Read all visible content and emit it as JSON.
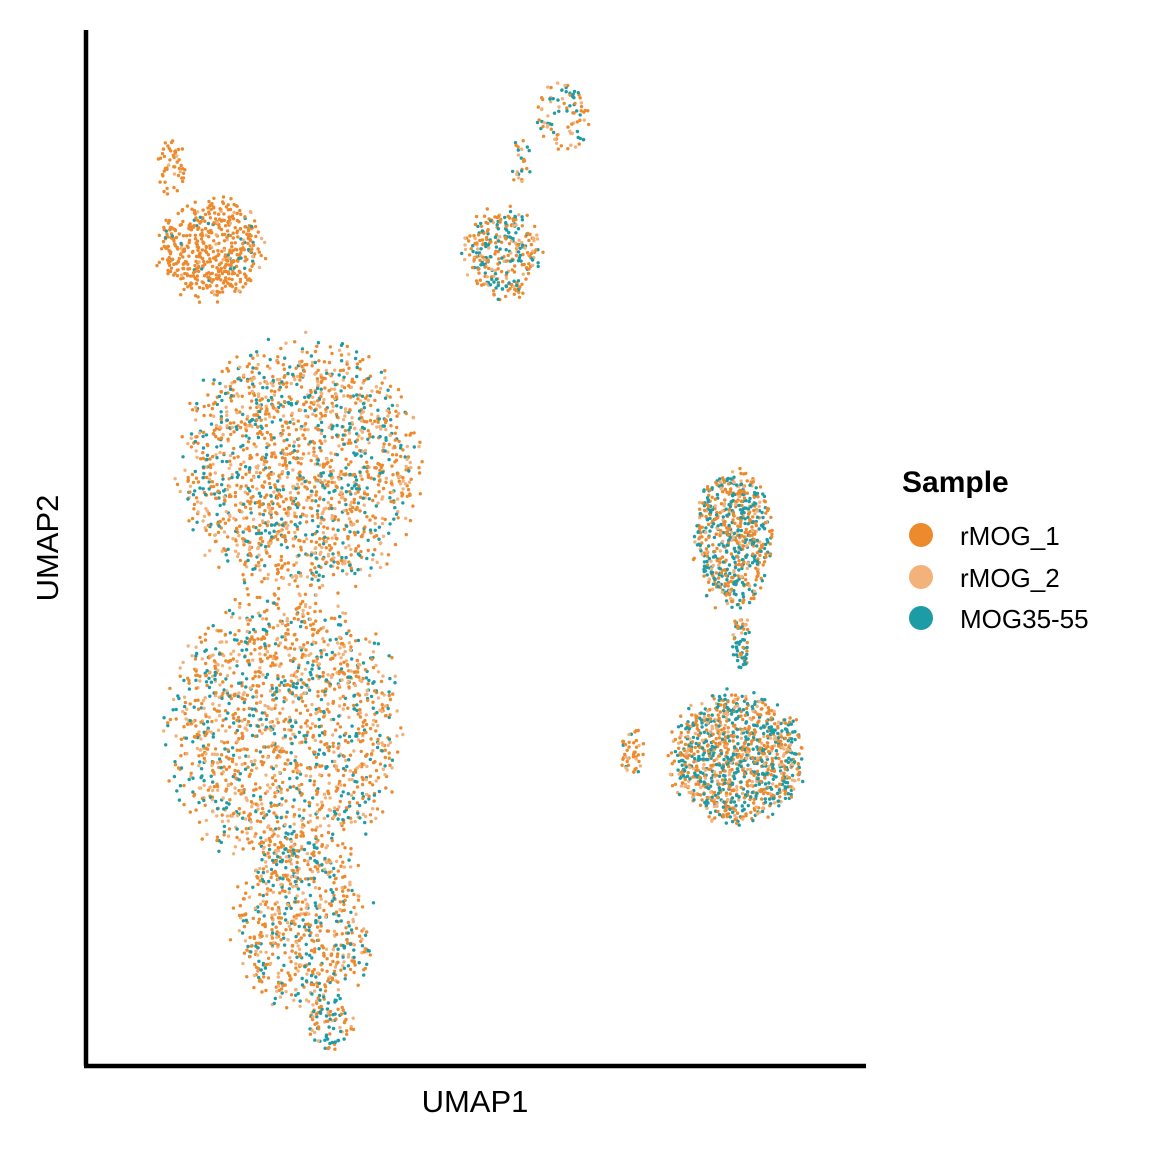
{
  "chart_data": {
    "type": "scatter",
    "title": "",
    "xlabel": "UMAP1",
    "ylabel": "UMAP2",
    "xlim": [
      0,
      100
    ],
    "ylim": [
      0,
      100
    ],
    "grid": false,
    "legend_position": "right",
    "legend": {
      "title": "Sample",
      "items": [
        {
          "name": "rMOG_1",
          "color": "#EE8A2E"
        },
        {
          "name": "rMOG_2",
          "color": "#F2B27A"
        },
        {
          "name": "MOG35-55",
          "color": "#1E9CA6"
        }
      ]
    },
    "series": [
      {
        "name": "rMOG_1",
        "color": "#EE8A2E"
      },
      {
        "name": "rMOG_2",
        "color": "#F2B27A"
      },
      {
        "name": "MOG35-55",
        "color": "#1E9CA6"
      }
    ],
    "clusters": [
      {
        "cx": 15.5,
        "cy": 79.5,
        "rx": 7.5,
        "ry": 5.5,
        "n": 500,
        "mix": [
          0.85,
          0.08,
          0.07
        ]
      },
      {
        "cx": 10.5,
        "cy": 87.5,
        "rx": 2.0,
        "ry": 3.5,
        "n": 50,
        "mix": [
          0.9,
          0.05,
          0.05
        ]
      },
      {
        "cx": 27.0,
        "cy": 58.0,
        "rx": 17.0,
        "ry": 13.5,
        "n": 1700,
        "mix": [
          0.5,
          0.25,
          0.25
        ]
      },
      {
        "cx": 25.0,
        "cy": 32.0,
        "rx": 16.5,
        "ry": 15.0,
        "n": 1600,
        "mix": [
          0.48,
          0.24,
          0.28
        ]
      },
      {
        "cx": 27.5,
        "cy": 13.0,
        "rx": 10.0,
        "ry": 9.0,
        "n": 650,
        "mix": [
          0.45,
          0.25,
          0.3
        ]
      },
      {
        "cx": 31.0,
        "cy": 3.5,
        "rx": 3.5,
        "ry": 3.0,
        "n": 90,
        "mix": [
          0.4,
          0.2,
          0.4
        ]
      },
      {
        "cx": 53.5,
        "cy": 79.0,
        "rx": 5.5,
        "ry": 5.0,
        "n": 300,
        "mix": [
          0.5,
          0.18,
          0.32
        ]
      },
      {
        "cx": 61.5,
        "cy": 92.5,
        "rx": 4.0,
        "ry": 3.5,
        "n": 90,
        "mix": [
          0.45,
          0.25,
          0.3
        ]
      },
      {
        "cx": 56.0,
        "cy": 88.0,
        "rx": 1.5,
        "ry": 3.0,
        "n": 25,
        "mix": [
          0.4,
          0.2,
          0.4
        ]
      },
      {
        "cx": 83.5,
        "cy": 51.0,
        "rx": 5.5,
        "ry": 7.5,
        "n": 650,
        "mix": [
          0.45,
          0.15,
          0.4
        ]
      },
      {
        "cx": 84.5,
        "cy": 41.0,
        "rx": 1.4,
        "ry": 3.0,
        "n": 60,
        "mix": [
          0.4,
          0.15,
          0.45
        ]
      },
      {
        "cx": 84.0,
        "cy": 29.5,
        "rx": 9.5,
        "ry": 7.0,
        "n": 1100,
        "mix": [
          0.42,
          0.18,
          0.4
        ]
      },
      {
        "cx": 70.5,
        "cy": 30.0,
        "rx": 2.0,
        "ry": 2.5,
        "n": 45,
        "mix": [
          0.6,
          0.2,
          0.2
        ]
      }
    ]
  }
}
